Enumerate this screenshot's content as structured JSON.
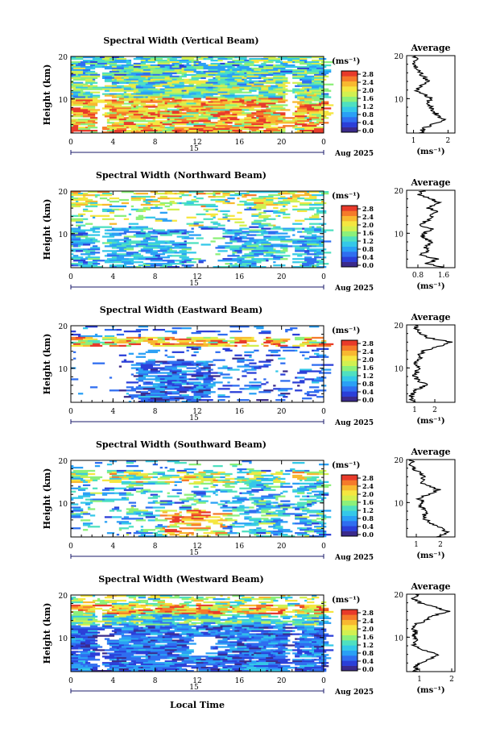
{
  "figure": {
    "xlabel_bottom": "Local Time"
  },
  "colorbar": {
    "unit": "(ms⁻¹)",
    "ticks": [
      "2.8",
      "2.4",
      "2.0",
      "1.6",
      "1.2",
      "0.8",
      "0.4",
      "0.0"
    ],
    "colors": [
      "#3a2a8c",
      "#2b3fd8",
      "#2f6ef0",
      "#2aa0f5",
      "#34c8e8",
      "#4fe0c0",
      "#8cf07a",
      "#d2f050",
      "#f5e640",
      "#f8b830",
      "#f57a2a",
      "#e83a2a"
    ]
  },
  "chart_data": [
    {
      "type": "heatmap",
      "title": "Spectral Width (Vertical Beam)",
      "ylabel": "Height (km)",
      "ylim": [
        2,
        20
      ],
      "yticks": [
        "20",
        "10"
      ],
      "xlim": [
        0,
        24
      ],
      "xticks": [
        "0",
        "4",
        "8",
        "12",
        "16",
        "20",
        "0"
      ],
      "date_day": "15",
      "date_month": "Aug 2025",
      "profile": {
        "title": "Average",
        "xlim": [
          0.8,
          2.2
        ],
        "xticks": [
          "1",
          "2"
        ],
        "xlabel": "(ms⁻¹)",
        "yticks": [
          "20",
          "10"
        ],
        "height": [
          2,
          3,
          4,
          5,
          6,
          7,
          8,
          9,
          10,
          11,
          12,
          13,
          14,
          15,
          16,
          17,
          18,
          19,
          20
        ],
        "values": [
          1.2,
          1.3,
          1.5,
          1.9,
          1.7,
          1.6,
          1.5,
          1.4,
          1.5,
          1.3,
          1.1,
          1.2,
          1.4,
          1.3,
          1.2,
          1.1,
          1.0,
          1.1,
          1.0
        ]
      }
    },
    {
      "type": "heatmap",
      "title": "Spectral Width (Northward Beam)",
      "ylabel": "Height (km)",
      "ylim": [
        2,
        20
      ],
      "yticks": [
        "20",
        "10"
      ],
      "xlim": [
        0,
        24
      ],
      "xticks": [
        "0",
        "4",
        "8",
        "12",
        "16",
        "20",
        "0"
      ],
      "date_day": "15",
      "date_month": "Aug 2025",
      "profile": {
        "title": "Average",
        "xlim": [
          0.45,
          1.95
        ],
        "xticks": [
          "0.8",
          "1.6"
        ],
        "xlabel": "(ms⁻¹)",
        "yticks": [
          "20",
          "10"
        ],
        "height": [
          2,
          3,
          4,
          5,
          6,
          7,
          8,
          9,
          10,
          11,
          12,
          13,
          14,
          15,
          16,
          17,
          18,
          19,
          20
        ],
        "values": [
          1.6,
          1.1,
          1.4,
          0.9,
          1.1,
          1.0,
          1.3,
          0.9,
          1.0,
          1.2,
          0.8,
          1.1,
          1.2,
          1.4,
          1.1,
          1.5,
          1.2,
          0.8,
          1.0
        ]
      }
    },
    {
      "type": "heatmap",
      "title": "Spectral Width (Eastward Beam)",
      "ylabel": "Height (km)",
      "ylim": [
        2,
        20
      ],
      "yticks": [
        "20",
        "10"
      ],
      "xlim": [
        0,
        24
      ],
      "xticks": [
        "0",
        "4",
        "8",
        "12",
        "16",
        "20",
        "0"
      ],
      "date_day": "15",
      "date_month": "Aug 2025",
      "profile": {
        "title": "Average",
        "xlim": [
          0.6,
          3.0
        ],
        "xticks": [
          "1",
          "2"
        ],
        "xlabel": "(ms⁻¹)",
        "yticks": [
          "20",
          "10"
        ],
        "height": [
          2,
          3,
          4,
          5,
          6,
          7,
          8,
          9,
          10,
          11,
          12,
          13,
          14,
          15,
          16,
          17,
          18,
          19,
          20
        ],
        "values": [
          0.9,
          0.8,
          0.9,
          1.1,
          1.6,
          1.2,
          1.0,
          1.1,
          1.2,
          1.0,
          1.3,
          1.2,
          1.5,
          2.2,
          2.8,
          1.7,
          1.3,
          1.1,
          1.0
        ]
      }
    },
    {
      "type": "heatmap",
      "title": "Spectral Width (Southward Beam)",
      "ylabel": "Height (km)",
      "ylim": [
        2,
        20
      ],
      "yticks": [
        "20",
        "10"
      ],
      "xlim": [
        0,
        24
      ],
      "xticks": [
        "0",
        "4",
        "8",
        "12",
        "16",
        "20",
        "0"
      ],
      "date_day": "15",
      "date_month": "Aug 2025",
      "profile": {
        "title": "Average",
        "xlim": [
          0.6,
          2.6
        ],
        "xticks": [
          "1",
          "2"
        ],
        "xlabel": "(ms⁻¹)",
        "yticks": [
          "20",
          "10"
        ],
        "height": [
          2,
          3,
          4,
          5,
          6,
          7,
          8,
          9,
          10,
          11,
          12,
          13,
          14,
          15,
          16,
          17,
          18,
          19,
          20
        ],
        "values": [
          1.8,
          2.3,
          2.1,
          1.6,
          1.4,
          1.3,
          1.5,
          1.2,
          1.3,
          1.1,
          1.6,
          1.9,
          1.4,
          1.2,
          1.3,
          1.1,
          0.9,
          0.8,
          0.8
        ]
      }
    },
    {
      "type": "heatmap",
      "title": "Spectral Width (Westward Beam)",
      "ylabel": "Height (km)",
      "ylim": [
        2,
        20
      ],
      "yticks": [
        "20",
        "10"
      ],
      "xlim": [
        0,
        24
      ],
      "xticks": [
        "0",
        "4",
        "8",
        "12",
        "16",
        "20",
        "0"
      ],
      "date_day": "15",
      "date_month": "Aug 2025",
      "profile": {
        "title": "Average",
        "xlim": [
          0.6,
          2.1
        ],
        "xticks": [
          "1",
          "2"
        ],
        "xlabel": "(ms⁻¹)",
        "yticks": [
          "20",
          "10"
        ],
        "height": [
          2,
          3,
          4,
          5,
          6,
          7,
          8,
          9,
          10,
          11,
          12,
          13,
          14,
          15,
          16,
          17,
          18,
          19,
          20
        ],
        "values": [
          0.9,
          0.9,
          1.0,
          1.3,
          1.6,
          1.1,
          0.8,
          0.9,
          0.8,
          0.9,
          0.8,
          0.9,
          1.2,
          1.4,
          1.9,
          1.5,
          1.0,
          0.8,
          1.0
        ]
      }
    }
  ]
}
